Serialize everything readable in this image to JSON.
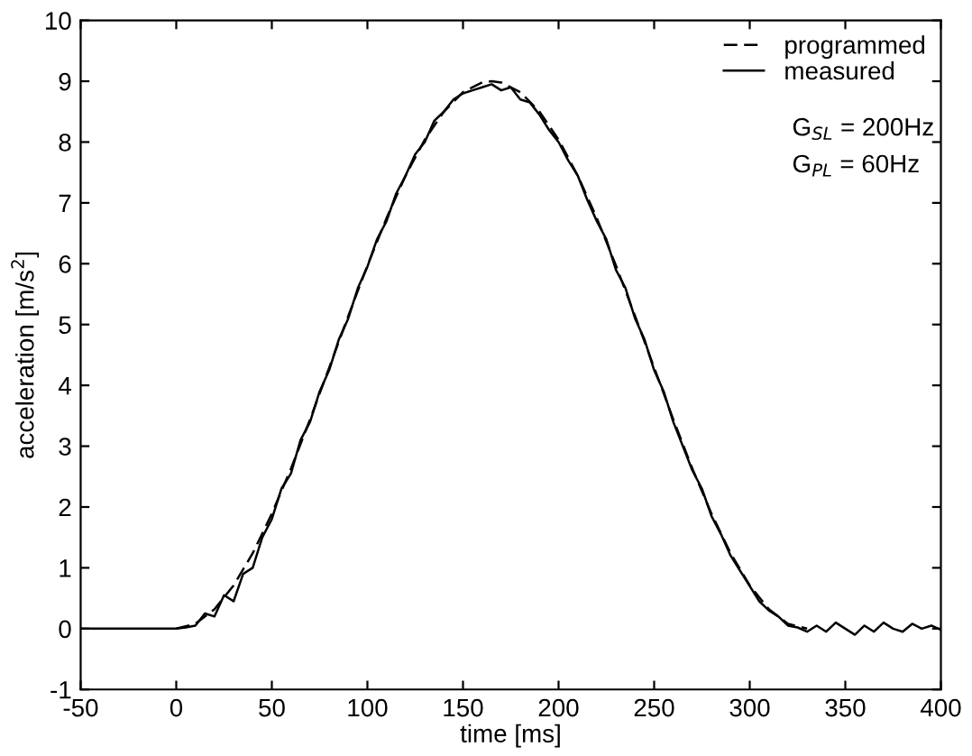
{
  "chart_data": {
    "type": "line",
    "xlabel": "time [ms]",
    "ylabel": "acceleration [m/s$^{2}$]",
    "xlim": [
      -50,
      400
    ],
    "ylim": [
      -1,
      10
    ],
    "xticks": [
      -50,
      0,
      50,
      100,
      150,
      200,
      250,
      300,
      350,
      400
    ],
    "yticks": [
      -1,
      0,
      1,
      2,
      3,
      4,
      5,
      6,
      7,
      8,
      9,
      10
    ],
    "grid": false,
    "legend": "top right",
    "series": [
      {
        "name": "programmed",
        "color": "#000000",
        "line_style": "dashed",
        "x": [
          0,
          10,
          20,
          30,
          40,
          50,
          60,
          70,
          80,
          90,
          100,
          110,
          120,
          130,
          140,
          150,
          160,
          165,
          170,
          180,
          190,
          200,
          210,
          220,
          230,
          240,
          250,
          260,
          270,
          280,
          290,
          300,
          310,
          320,
          330
        ],
        "values": [
          0,
          0.08,
          0.32,
          0.71,
          1.24,
          1.89,
          2.63,
          3.44,
          4.29,
          5.14,
          5.97,
          6.75,
          7.45,
          8.04,
          8.5,
          8.82,
          8.98,
          9.0,
          8.98,
          8.82,
          8.5,
          8.04,
          7.45,
          6.75,
          5.97,
          5.14,
          4.29,
          3.44,
          2.63,
          1.89,
          1.24,
          0.71,
          0.32,
          0.08,
          0
        ]
      },
      {
        "name": "measured",
        "color": "#000000",
        "line_style": "solid",
        "x": [
          -50,
          0,
          5,
          10,
          15,
          20,
          25,
          30,
          35,
          40,
          45,
          50,
          55,
          60,
          65,
          70,
          75,
          80,
          85,
          90,
          95,
          100,
          105,
          110,
          115,
          120,
          125,
          130,
          135,
          140,
          145,
          150,
          155,
          160,
          165,
          170,
          175,
          180,
          185,
          190,
          195,
          200,
          205,
          210,
          215,
          220,
          225,
          230,
          235,
          240,
          245,
          250,
          255,
          260,
          265,
          270,
          275,
          280,
          285,
          290,
          295,
          300,
          305,
          310,
          315,
          320,
          325,
          330,
          335,
          340,
          345,
          350,
          355,
          360,
          365,
          370,
          375,
          380,
          385,
          390,
          395,
          400
        ],
        "values": [
          0,
          0,
          0.02,
          0.05,
          0.25,
          0.2,
          0.55,
          0.45,
          0.9,
          1.0,
          1.5,
          1.8,
          2.3,
          2.55,
          3.1,
          3.4,
          3.9,
          4.25,
          4.75,
          5.1,
          5.6,
          5.95,
          6.4,
          6.7,
          7.15,
          7.45,
          7.8,
          8.0,
          8.35,
          8.5,
          8.7,
          8.8,
          8.85,
          8.9,
          8.95,
          8.85,
          8.9,
          8.7,
          8.65,
          8.45,
          8.2,
          8.0,
          7.7,
          7.45,
          7.05,
          6.7,
          6.4,
          5.9,
          5.6,
          5.1,
          4.75,
          4.25,
          3.9,
          3.4,
          3.0,
          2.6,
          2.3,
          1.85,
          1.55,
          1.2,
          0.95,
          0.7,
          0.45,
          0.3,
          0.2,
          0.05,
          0.02,
          -0.05,
          0.05,
          -0.05,
          0.1,
          0.0,
          -0.1,
          0.05,
          -0.05,
          0.1,
          0.0,
          -0.05,
          0.08,
          0.0,
          0.05,
          -0.02
        ]
      }
    ],
    "annotations": [
      "G$_{SL}$ = 200Hz",
      "G$_{PL}$ = 60Hz"
    ]
  }
}
